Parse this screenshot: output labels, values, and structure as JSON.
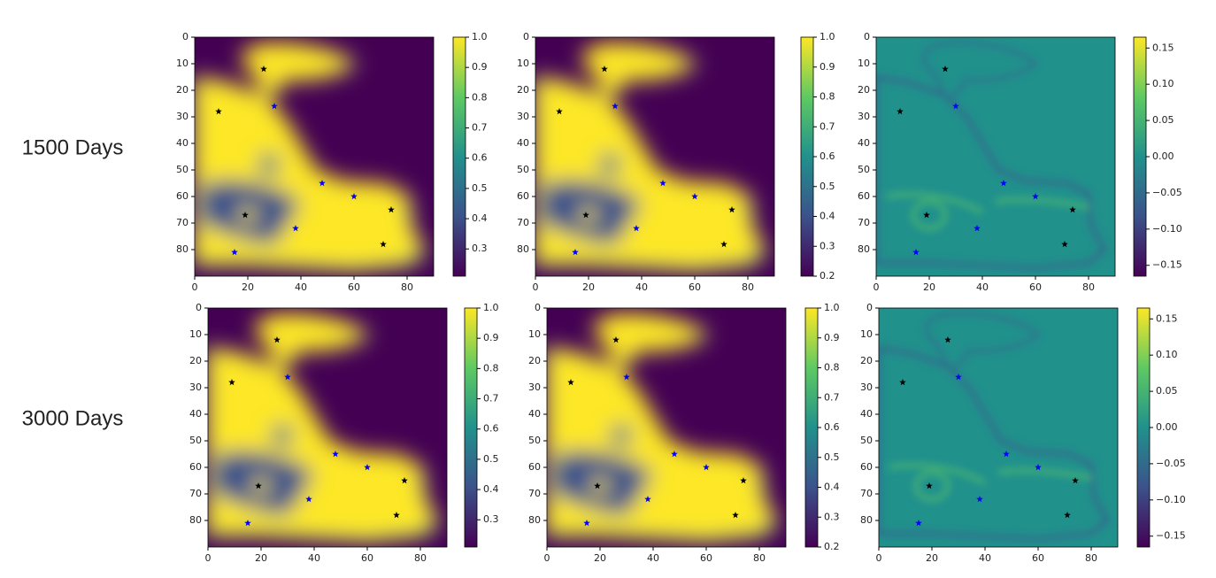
{
  "xticks": [
    0,
    20,
    40,
    60,
    80
  ],
  "yticks": [
    0,
    10,
    20,
    30,
    40,
    50,
    60,
    70,
    80
  ],
  "xlim": [
    0,
    90
  ],
  "ylim": [
    0,
    90
  ],
  "markers": [
    {
      "color": "#000000",
      "points": [
        [
          26,
          12
        ],
        [
          9,
          28
        ],
        [
          19,
          67
        ],
        [
          74,
          65
        ],
        [
          71,
          78
        ]
      ]
    },
    {
      "color": "#0000ff",
      "points": [
        [
          30,
          26
        ],
        [
          48,
          55
        ],
        [
          60,
          60
        ],
        [
          38,
          72
        ],
        [
          15,
          81
        ]
      ]
    }
  ],
  "rows": [
    {
      "label": "1500 Days",
      "panels": [
        {
          "cbar_lim": [
            0.21,
            1.0
          ],
          "cbar_ticks": [
            0.3,
            0.4,
            0.5,
            0.6,
            0.7,
            0.8,
            0.9,
            {
              "value": 1.0,
              "label": "1.0"
            }
          ]
        },
        {
          "cbar_lim": [
            0.2,
            1.0
          ],
          "cbar_ticks": [
            0.2,
            0.3,
            0.4,
            0.5,
            0.6,
            0.7,
            0.8,
            0.9,
            {
              "value": 1.0,
              "label": "1.0"
            }
          ]
        },
        {
          "cbar_lim": [
            -0.165,
            0.165
          ],
          "cbar_ticks": [
            {
              "value": -0.15,
              "label": "−0.15"
            },
            {
              "value": -0.1,
              "label": "−0.10"
            },
            {
              "value": -0.05,
              "label": "−0.05"
            },
            {
              "value": 0,
              "label": "0.00"
            },
            0.05,
            {
              "value": 0.1,
              "label": "0.10"
            },
            0.15
          ]
        }
      ]
    },
    {
      "label": "3000 Days",
      "panels": [
        {
          "cbar_lim": [
            0.21,
            1.0
          ],
          "cbar_ticks": [
            0.3,
            0.4,
            0.5,
            0.6,
            0.7,
            0.8,
            0.9,
            {
              "value": 1.0,
              "label": "1.0"
            }
          ]
        },
        {
          "cbar_lim": [
            0.2,
            1.0
          ],
          "cbar_ticks": [
            0.2,
            0.3,
            0.4,
            0.5,
            0.6,
            0.7,
            0.8,
            0.9,
            {
              "value": 1.0,
              "label": "1.0"
            }
          ]
        },
        {
          "cbar_lim": [
            -0.165,
            0.165
          ],
          "cbar_ticks": [
            {
              "value": -0.15,
              "label": "−0.15"
            },
            {
              "value": -0.1,
              "label": "−0.10"
            },
            {
              "value": -0.05,
              "label": "−0.05"
            },
            {
              "value": 0,
              "label": "0.00"
            },
            0.05,
            {
              "value": 0.1,
              "label": "0.10"
            },
            0.15
          ]
        }
      ]
    }
  ]
}
